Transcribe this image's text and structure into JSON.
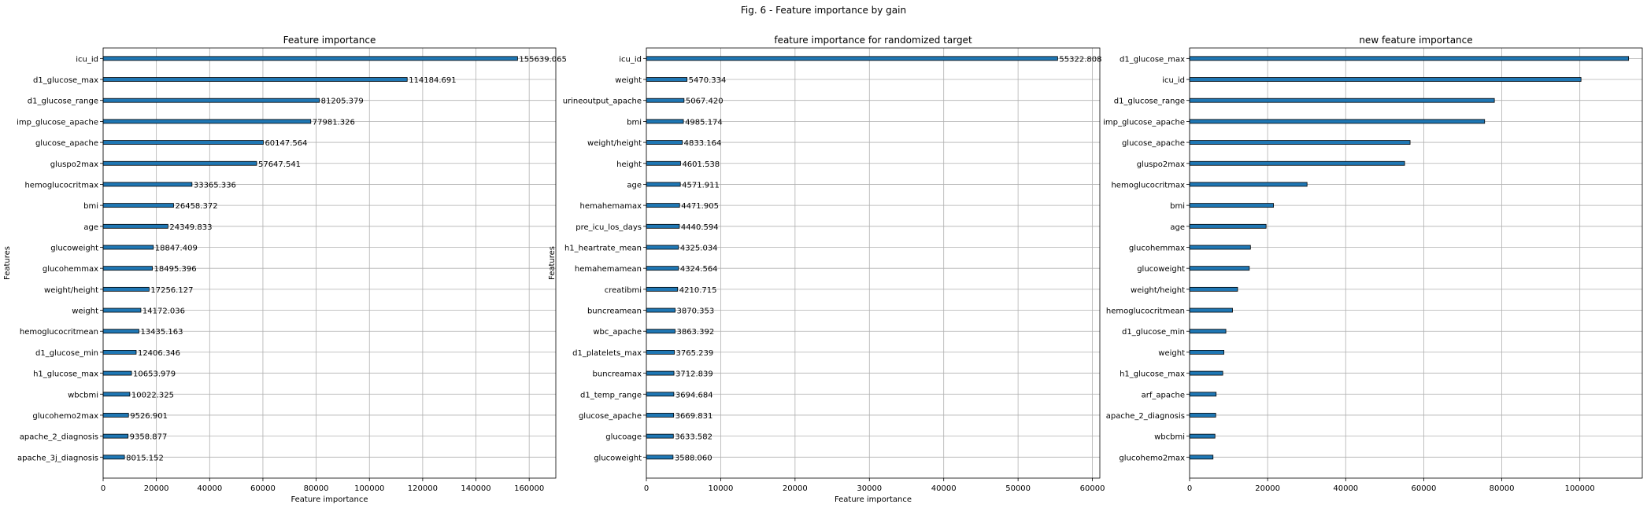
{
  "suptitle": "Fig. 6 - Feature importance by gain",
  "chart_data": [
    {
      "type": "bar",
      "orientation": "horizontal",
      "title": "Feature importance",
      "xlabel": "Feature importance",
      "ylabel": "Features",
      "xlim": [
        0,
        170000
      ],
      "xticks": [
        0,
        20000,
        40000,
        60000,
        80000,
        100000,
        120000,
        140000,
        160000
      ],
      "grid": true,
      "show_value_labels": true,
      "categories": [
        "icu_id",
        "d1_glucose_max",
        "d1_glucose_range",
        "imp_glucose_apache",
        "glucose_apache",
        "gluspo2max",
        "hemoglucocritmax",
        "bmi",
        "age",
        "glucoweight",
        "glucohemmax",
        "weight/height",
        "weight",
        "hemoglucocritmean",
        "d1_glucose_min",
        "h1_glucose_max",
        "wbcbmi",
        "glucohemo2max",
        "apache_2_diagnosis",
        "apache_3j_diagnosis"
      ],
      "values": [
        155639.065,
        114184.691,
        81205.379,
        77981.326,
        60147.564,
        57647.541,
        33365.336,
        26458.372,
        24349.833,
        18847.409,
        18495.396,
        17256.127,
        14172.036,
        13435.163,
        12406.346,
        10653.979,
        10022.325,
        9526.901,
        9358.877,
        8015.152
      ],
      "value_labels": [
        "155639.065",
        "114184.691",
        "81205.379",
        "77981.326",
        "60147.564",
        "57647.541",
        "33365.336",
        "26458.372",
        "24349.833",
        "18847.409",
        "18495.396",
        "17256.127",
        "14172.036",
        "13435.163",
        "12406.346",
        "10653.979",
        "10022.325",
        "9526.901",
        "9358.877",
        "8015.152"
      ]
    },
    {
      "type": "bar",
      "orientation": "horizontal",
      "title": "feature importance for randomized target",
      "xlabel": "Feature importance",
      "ylabel": "Features",
      "xlim": [
        0,
        61000
      ],
      "xticks": [
        0,
        10000,
        20000,
        30000,
        40000,
        50000,
        60000
      ],
      "grid": true,
      "show_value_labels": true,
      "categories": [
        "icu_id",
        "weight",
        "urineoutput_apache",
        "bmi",
        "weight/height",
        "height",
        "age",
        "hemahemamax",
        "pre_icu_los_days",
        "h1_heartrate_mean",
        "hemahemamean",
        "creatibmi",
        "buncreamean",
        "wbc_apache",
        "d1_platelets_max",
        "buncreamax",
        "d1_temp_range",
        "glucose_apache",
        "glucoage",
        "glucoweight"
      ],
      "values": [
        55322.808,
        5470.334,
        5067.42,
        4985.174,
        4833.164,
        4601.538,
        4571.911,
        4471.905,
        4440.594,
        4325.034,
        4324.564,
        4210.715,
        3870.353,
        3863.392,
        3765.239,
        3712.839,
        3694.684,
        3669.831,
        3633.582,
        3588.06
      ],
      "value_labels": [
        "55322.808",
        "5470.334",
        "5067.420",
        "4985.174",
        "4833.164",
        "4601.538",
        "4571.911",
        "4471.905",
        "4440.594",
        "4325.034",
        "4324.564",
        "4210.715",
        "3870.353",
        "3863.392",
        "3765.239",
        "3712.839",
        "3694.684",
        "3669.831",
        "3633.582",
        "3588.060"
      ]
    },
    {
      "type": "bar",
      "orientation": "horizontal",
      "title": "new feature importance",
      "xlabel": "",
      "ylabel": "",
      "xlim": [
        0,
        116000
      ],
      "xticks": [
        0,
        20000,
        40000,
        60000,
        80000,
        100000
      ],
      "grid": true,
      "show_value_labels": false,
      "categories": [
        "d1_glucose_max",
        "icu_id",
        "d1_glucose_range",
        "imp_glucose_apache",
        "glucose_apache",
        "gluspo2max",
        "hemoglucocritmax",
        "bmi",
        "age",
        "glucohemmax",
        "glucoweight",
        "weight/height",
        "hemoglucocritmean",
        "d1_glucose_min",
        "weight",
        "h1_glucose_max",
        "arf_apache",
        "apache_2_diagnosis",
        "wbcbmi",
        "glucohemo2max"
      ],
      "values": [
        112500,
        100300,
        78100,
        75600,
        56500,
        55100,
        30100,
        21500,
        19600,
        15600,
        15300,
        12300,
        11000,
        9300,
        8800,
        8500,
        6800,
        6700,
        6500,
        6000
      ],
      "value_labels": []
    }
  ],
  "colors": {
    "bar_fill": "#1f77b4",
    "bar_edge": "#000000",
    "grid": "#b0b0b0",
    "axis": "#000000"
  }
}
